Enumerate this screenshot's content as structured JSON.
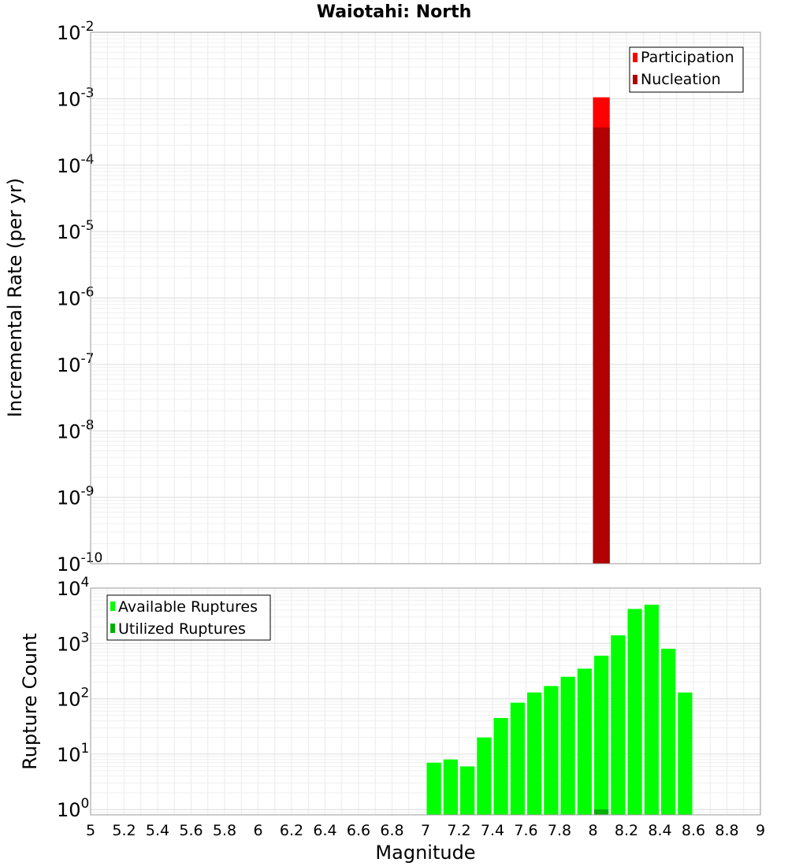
{
  "chart_data": [
    {
      "type": "bar",
      "title": "Waiotahi: North",
      "xlabel": "",
      "ylabel": "Incremental Rate (per yr)",
      "xlim": [
        5,
        9
      ],
      "yscale": "log",
      "ylim": [
        1e-10,
        0.01
      ],
      "y_tick_exponents": [
        "-10",
        "-9",
        "-8",
        "-7",
        "-6",
        "-5",
        "-4",
        "-3",
        "-2"
      ],
      "bin_width": 0.1,
      "grid": true,
      "legend_position": "top-right",
      "legend": [
        "Participation",
        "Nucleation"
      ],
      "series": [
        {
          "name": "Participation",
          "color": "#ff0000",
          "x": [
            8.05
          ],
          "values": [
            0.00105
          ]
        },
        {
          "name": "Nucleation",
          "color": "#b00000",
          "x": [
            8.05
          ],
          "values": [
            0.00037
          ]
        }
      ]
    },
    {
      "type": "bar",
      "title": "",
      "xlabel": "Magnitude",
      "ylabel": "Rupture Count",
      "xlim": [
        5,
        9
      ],
      "yscale": "log",
      "ylim": [
        0.8,
        10000
      ],
      "y_tick_exponents": [
        "0",
        "1",
        "2",
        "3",
        "4"
      ],
      "x_tick_labels": [
        "5",
        "5.2",
        "5.4",
        "5.6",
        "5.8",
        "6",
        "6.2",
        "6.4",
        "6.6",
        "6.8",
        "7",
        "7.2",
        "7.4",
        "7.6",
        "7.8",
        "8",
        "8.2",
        "8.4",
        "8.6",
        "8.8",
        "9"
      ],
      "bin_width": 0.1,
      "grid": true,
      "legend_position": "top-left",
      "legend": [
        "Available Ruptures",
        "Utilized Ruptures"
      ],
      "series": [
        {
          "name": "Available Ruptures",
          "color": "#00ff00",
          "x": [
            7.05,
            7.15,
            7.25,
            7.35,
            7.45,
            7.55,
            7.65,
            7.75,
            7.85,
            7.95,
            8.05,
            8.15,
            8.25,
            8.35,
            8.45,
            8.55
          ],
          "values": [
            7,
            8,
            6,
            20,
            45,
            85,
            130,
            170,
            250,
            350,
            600,
            1400,
            4200,
            5000,
            800,
            130
          ]
        },
        {
          "name": "Utilized Ruptures",
          "color": "#00b000",
          "x": [
            8.05
          ],
          "values": [
            1
          ]
        }
      ]
    }
  ]
}
